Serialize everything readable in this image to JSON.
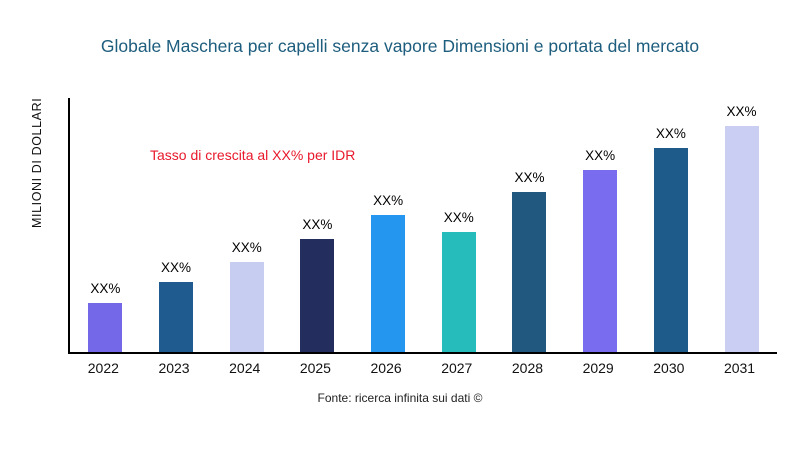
{
  "chart_data": {
    "type": "bar",
    "title": "Globale Maschera per capelli senza vapore Dimensioni e portata del mercato",
    "ylabel": "MILIONI DI DOLLARI",
    "xlabel": "",
    "annotation": "Tasso di crescita al XX% per IDR",
    "source": "Fonte: ricerca infinita sui dati ©",
    "categories": [
      "2022",
      "2023",
      "2024",
      "2025",
      "2026",
      "2027",
      "2028",
      "2029",
      "2030",
      "2031"
    ],
    "values": [
      50,
      72,
      92,
      116,
      140,
      123,
      164,
      186,
      209,
      231
    ],
    "bar_labels": [
      "XX%",
      "XX%",
      "XX%",
      "XX%",
      "XX%",
      "XX%",
      "XX%",
      "XX%",
      "XX%",
      "XX%"
    ],
    "colors": [
      "#7468e8",
      "#1f5b8e",
      "#c7cdf0",
      "#232d5e",
      "#2496ef",
      "#27bcbc",
      "#20587f",
      "#7a6cee",
      "#1e5a8a",
      "#c9cef2"
    ],
    "ylim": [
      0,
      260
    ],
    "grid": false,
    "legend": null,
    "annotation_color": "#e8192c",
    "title_color": "#1d5d7d"
  }
}
